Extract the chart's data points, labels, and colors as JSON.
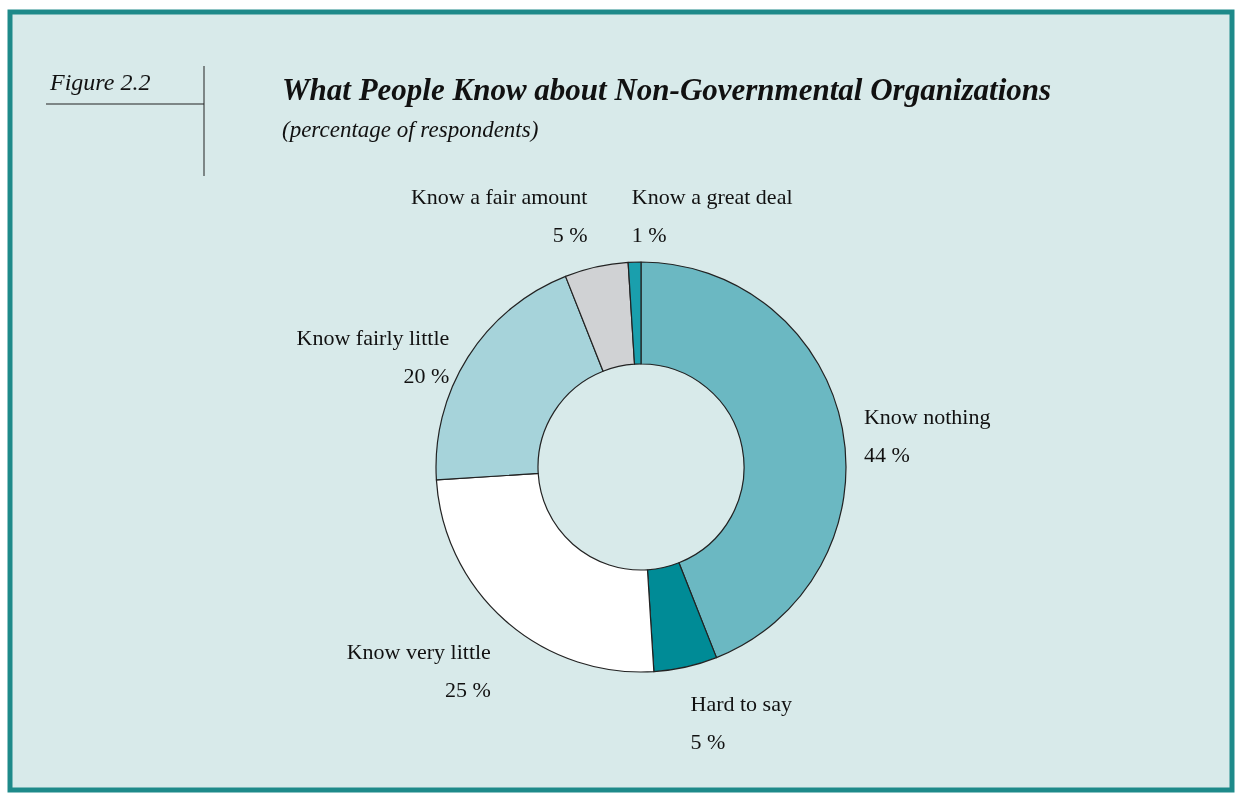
{
  "chart_data": {
    "type": "donut",
    "title": "What People Know about Non-Governmental Organizations",
    "subtitle": "(percentage of respondents)",
    "annotations": [
      "Figure 2.2"
    ],
    "categories": [
      "Know nothing",
      "Hard to say",
      "Know very little",
      "Know fairly little",
      "Know a fair amount",
      "Know a great deal"
    ],
    "values": [
      44,
      5,
      25,
      20,
      5,
      1
    ],
    "colors": [
      "#6bb8c2",
      "#008b96",
      "#ffffff",
      "#a6d3da",
      "#d0d2d4",
      "#1a9fad"
    ],
    "value_labels": [
      "44 %",
      "5 %",
      "25 %",
      "20 %",
      "5 %",
      "1 %"
    ]
  }
}
